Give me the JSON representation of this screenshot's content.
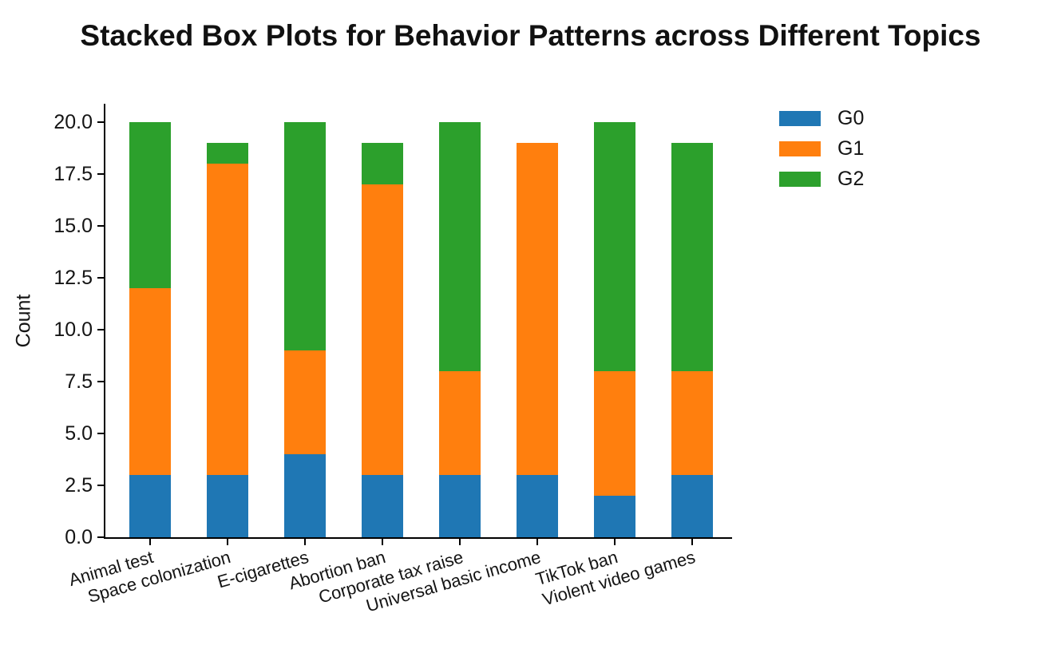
{
  "chart_data": {
    "type": "bar",
    "stacked": true,
    "title": "Stacked Box Plots for Behavior Patterns across Different Topics",
    "xlabel": "",
    "ylabel": "Count",
    "ylim": [
      0,
      20.9
    ],
    "grid": false,
    "legend_position": "upper right, outside plot",
    "yticks": [
      "0.0",
      "2.5",
      "5.0",
      "7.5",
      "10.0",
      "12.5",
      "15.0",
      "17.5",
      "20.0"
    ],
    "categories": [
      "Animal test",
      "Space colonization",
      "E-cigarettes",
      "Abortion ban",
      "Corporate tax raise",
      "Universal basic income",
      "TikTok ban",
      "Violent video games"
    ],
    "series": [
      {
        "name": "G0",
        "color": "#1f77b4",
        "values": [
          3,
          3,
          4,
          3,
          3,
          3,
          2,
          3
        ]
      },
      {
        "name": "G1",
        "color": "#ff7f0e",
        "values": [
          9,
          15,
          5,
          14,
          5,
          16,
          6,
          5
        ]
      },
      {
        "name": "G2",
        "color": "#2ca02c",
        "values": [
          8,
          1,
          11,
          2,
          12,
          0,
          12,
          11
        ]
      }
    ],
    "totals": [
      20,
      19,
      20,
      19,
      20,
      19,
      20,
      19
    ]
  }
}
